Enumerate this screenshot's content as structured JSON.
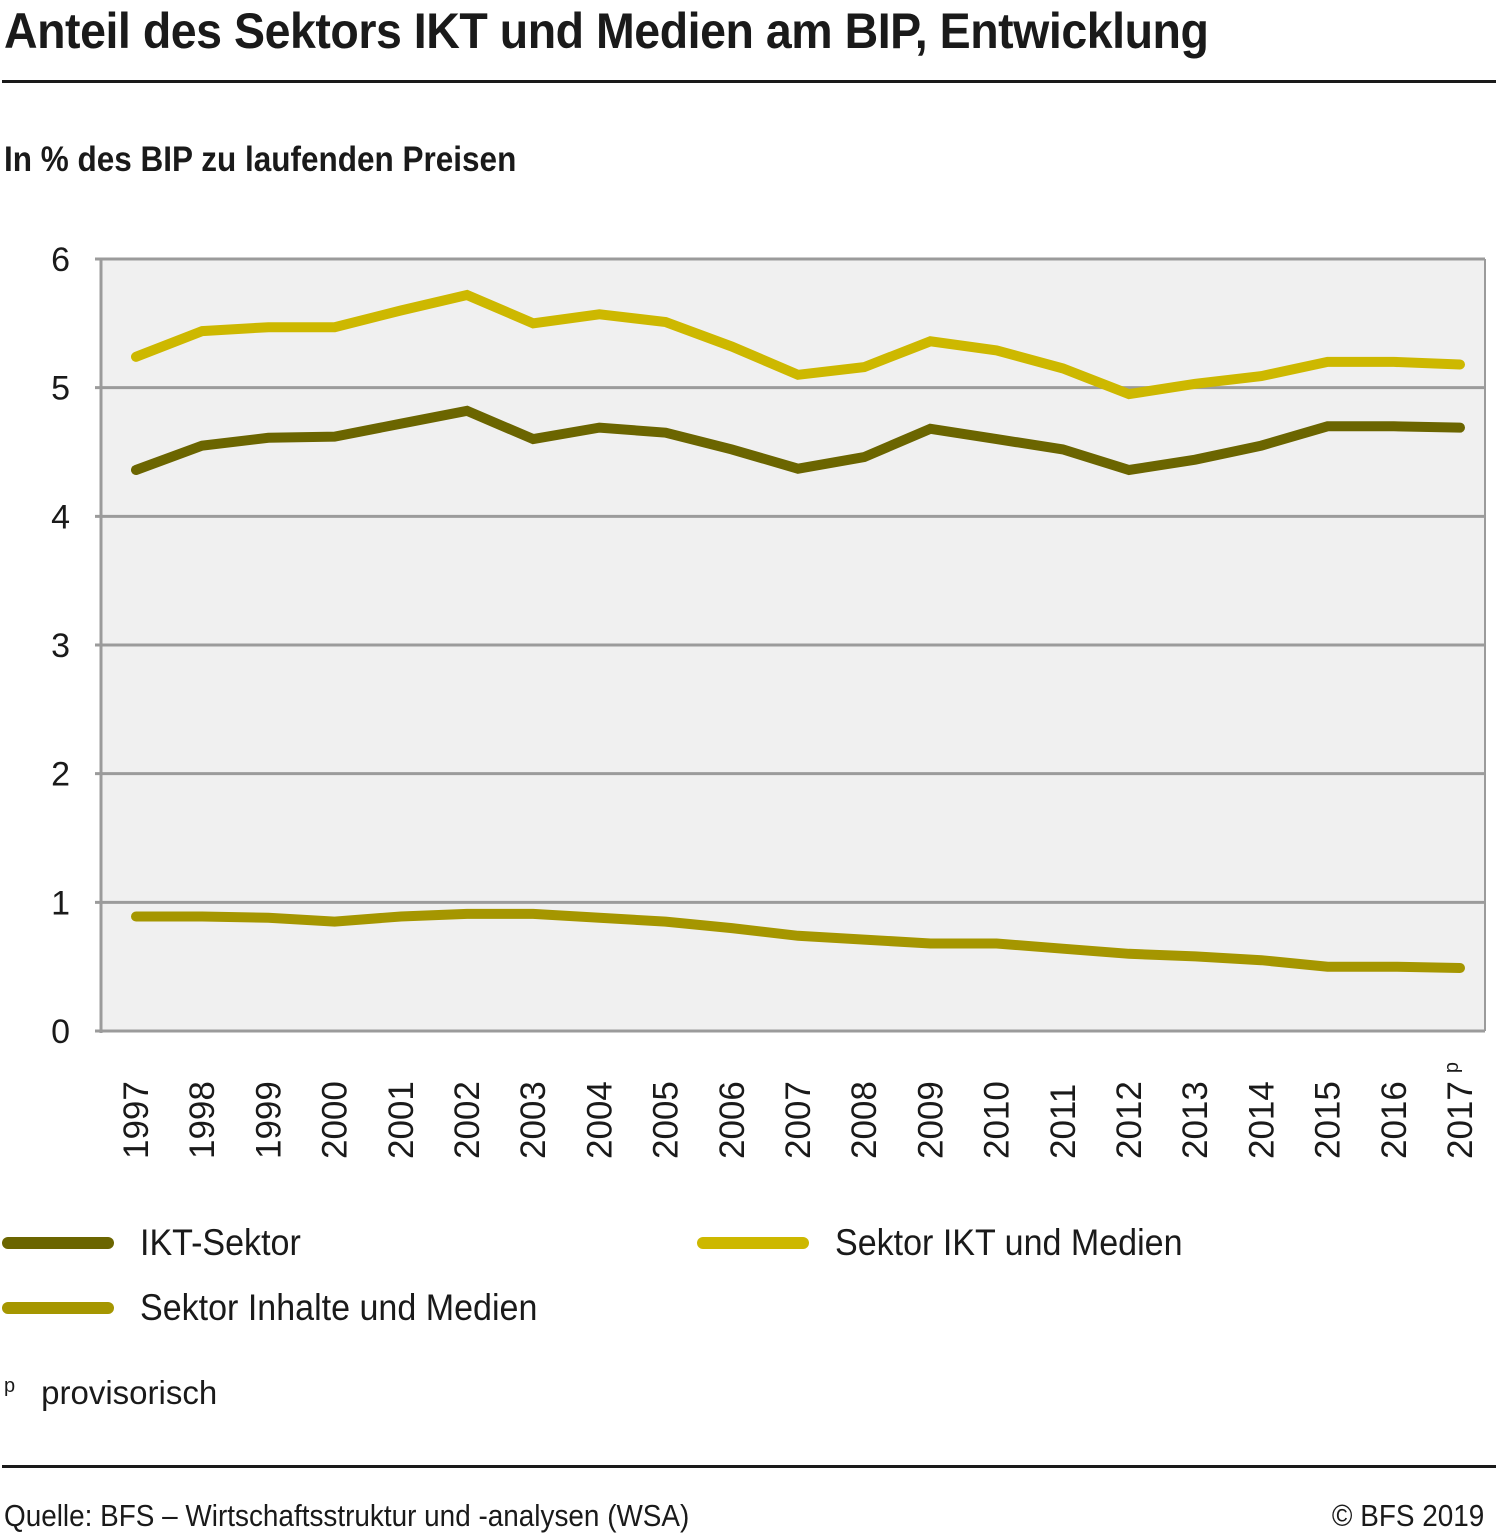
{
  "header": {
    "title": "Anteil des Sektors IKT und Medien am BIP, Entwicklung",
    "subtitle": "In % des BIP zu laufenden Preisen"
  },
  "chart_data": {
    "type": "line",
    "title": "Anteil des Sektors IKT und Medien am BIP, Entwicklung",
    "subtitle": "In % des BIP zu laufenden Preisen",
    "xlabel": "",
    "ylabel": "In % des BIP zu laufenden Preisen",
    "x": [
      "1997",
      "1998",
      "1999",
      "2000",
      "2001",
      "2002",
      "2003",
      "2004",
      "2005",
      "2006",
      "2007",
      "2008",
      "2009",
      "2010",
      "2011",
      "2012",
      "2013",
      "2014",
      "2015",
      "2016",
      "2017 p"
    ],
    "ylim": [
      0,
      6
    ],
    "yticks": [
      0,
      1,
      2,
      3,
      4,
      5,
      6
    ],
    "grid": true,
    "legend_position": "bottom",
    "series": [
      {
        "name": "IKT-Sektor",
        "color": "#6b6500",
        "values": [
          4.36,
          4.55,
          4.61,
          4.62,
          4.72,
          4.82,
          4.6,
          4.69,
          4.65,
          4.52,
          4.37,
          4.46,
          4.68,
          4.6,
          4.52,
          4.36,
          4.44,
          4.55,
          4.7,
          4.7,
          4.69
        ]
      },
      {
        "name": "Sektor IKT und Medien",
        "color": "#cdb800",
        "values": [
          5.24,
          5.44,
          5.47,
          5.47,
          5.6,
          5.72,
          5.5,
          5.57,
          5.51,
          5.32,
          5.1,
          5.16,
          5.36,
          5.29,
          5.15,
          4.95,
          5.03,
          5.09,
          5.2,
          5.2,
          5.18
        ]
      },
      {
        "name": "Sektor Inhalte und Medien",
        "color": "#a59600",
        "values": [
          0.89,
          0.89,
          0.88,
          0.85,
          0.89,
          0.91,
          0.91,
          0.88,
          0.85,
          0.8,
          0.74,
          0.71,
          0.68,
          0.68,
          0.64,
          0.6,
          0.58,
          0.55,
          0.5,
          0.5,
          0.49
        ]
      }
    ],
    "plot_background": "#f0f0f0",
    "grid_color": "#9b9b9b"
  },
  "legend": [
    {
      "label": "IKT-Sektor",
      "color": "#6b6500"
    },
    {
      "label": "Sektor IKT und Medien",
      "color": "#cdb800"
    },
    {
      "label": "Sektor Inhalte und Medien",
      "color": "#a59600"
    }
  ],
  "footnote": {
    "mark": "p",
    "text": "provisorisch"
  },
  "footer": {
    "source": "Quelle: BFS – Wirtschaftsstruktur und -analysen  (WSA)",
    "copyright": "© BFS 2019"
  }
}
